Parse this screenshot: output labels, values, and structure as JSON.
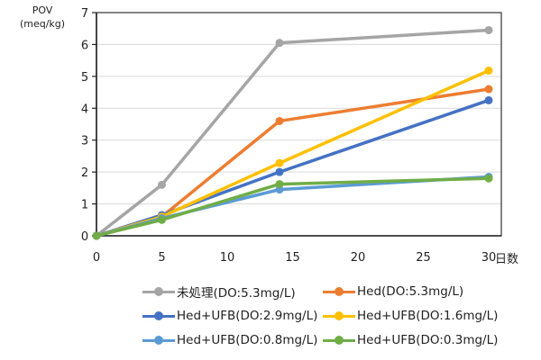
{
  "chart_data": {
    "type": "line",
    "title": "",
    "ylabel": "POV",
    "ylabel_unit": "(meq/kg)",
    "xlabel": "日数",
    "xlim": [
      0,
      30
    ],
    "ylim": [
      0,
      7
    ],
    "xticks": [
      0,
      5,
      10,
      15,
      20,
      25,
      30
    ],
    "yticks": [
      0,
      1,
      2,
      3,
      4,
      5,
      6,
      7
    ],
    "grid": "horizontal",
    "legend_position": "bottom",
    "x": [
      0,
      5,
      14,
      30
    ],
    "series": [
      {
        "name": "未処理(DO:5.3mg/L)",
        "color": "#a5a5a5",
        "values": [
          0,
          1.6,
          6.05,
          6.45
        ]
      },
      {
        "name": "Hed(DO:5.3mg/L)",
        "color": "#ed7d31",
        "values": [
          0,
          0.6,
          3.6,
          4.6
        ]
      },
      {
        "name": "Hed+UFB(DO:2.9mg/L)",
        "color": "#4472c4",
        "values": [
          0,
          0.65,
          2.0,
          4.25
        ]
      },
      {
        "name": "Hed+UFB(DO:1.6mg/L)",
        "color": "#ffc000",
        "values": [
          0,
          0.6,
          2.28,
          5.18
        ]
      },
      {
        "name": "Hed+UFB(DO:0.8mg/L)",
        "color": "#5b9bd5",
        "values": [
          0,
          0.55,
          1.45,
          1.85
        ]
      },
      {
        "name": "Hed+UFB(DO:0.3mg/L)",
        "color": "#70ad47",
        "values": [
          0,
          0.5,
          1.62,
          1.8
        ]
      }
    ]
  }
}
